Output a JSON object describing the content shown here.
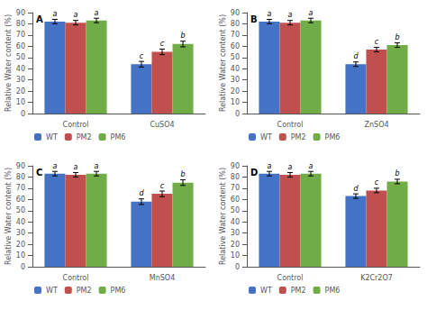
{
  "chart_data": [
    {
      "type": "bar",
      "title": "A",
      "categories": [
        "Control",
        "CuSO4"
      ],
      "ylabel": "Relative Water content (%)",
      "ylim": [
        0,
        90
      ],
      "yticks": [
        0,
        10,
        20,
        30,
        40,
        50,
        60,
        70,
        80,
        90
      ],
      "grid": false,
      "legend": "bottom",
      "series": [
        {
          "name": "WT",
          "color": "#4472C4",
          "values": [
            82,
            44
          ],
          "errors": [
            2.0,
            2.5
          ],
          "annotations": [
            "a",
            "c"
          ]
        },
        {
          "name": "PM2",
          "color": "#C0504D",
          "values": [
            81,
            55
          ],
          "errors": [
            2.0,
            2.5
          ],
          "annotations": [
            "a",
            "c"
          ]
        },
        {
          "name": "PM6",
          "color": "#70AD47",
          "values": [
            83,
            62
          ],
          "errors": [
            2.0,
            2.5
          ],
          "annotations": [
            "a",
            "b"
          ]
        }
      ]
    },
    {
      "type": "bar",
      "title": "B",
      "categories": [
        "Control",
        "ZnSO4"
      ],
      "ylabel": "Relative Water content (%)",
      "ylim": [
        0,
        90
      ],
      "yticks": [
        0,
        10,
        20,
        30,
        40,
        50,
        60,
        70,
        80,
        90
      ],
      "grid": false,
      "legend": "bottom",
      "series": [
        {
          "name": "WT",
          "color": "#4472C4",
          "values": [
            82,
            44
          ],
          "errors": [
            2.0,
            2.0
          ],
          "annotations": [
            "a",
            "d"
          ]
        },
        {
          "name": "PM2",
          "color": "#C0504D",
          "values": [
            81,
            57
          ],
          "errors": [
            2.0,
            2.0
          ],
          "annotations": [
            "a",
            "c"
          ]
        },
        {
          "name": "PM6",
          "color": "#70AD47",
          "values": [
            83,
            61
          ],
          "errors": [
            2.0,
            2.0
          ],
          "annotations": [
            "a",
            "b"
          ]
        }
      ]
    },
    {
      "type": "bar",
      "title": "C",
      "categories": [
        "Control",
        "MnSO4"
      ],
      "ylabel": "Relative Water content (%)",
      "ylim": [
        0,
        90
      ],
      "yticks": [
        0,
        10,
        20,
        30,
        40,
        50,
        60,
        70,
        80,
        90
      ],
      "grid": false,
      "legend": "bottom",
      "series": [
        {
          "name": "WT",
          "color": "#4472C4",
          "values": [
            83,
            58
          ],
          "errors": [
            2.0,
            2.5
          ],
          "annotations": [
            "a",
            "d"
          ]
        },
        {
          "name": "PM2",
          "color": "#C0504D",
          "values": [
            82,
            65
          ],
          "errors": [
            2.0,
            2.5
          ],
          "annotations": [
            "a",
            "c"
          ]
        },
        {
          "name": "PM6",
          "color": "#70AD47",
          "values": [
            83,
            75
          ],
          "errors": [
            2.0,
            2.5
          ],
          "annotations": [
            "a",
            "b"
          ]
        }
      ]
    },
    {
      "type": "bar",
      "title": "D",
      "categories": [
        "Control",
        "K2Cr2O7"
      ],
      "ylabel": "Relative Water content (%)",
      "ylim": [
        0,
        90
      ],
      "yticks": [
        0,
        10,
        20,
        30,
        40,
        50,
        60,
        70,
        80,
        90
      ],
      "grid": false,
      "legend": "bottom",
      "series": [
        {
          "name": "WT",
          "color": "#4472C4",
          "values": [
            83,
            63
          ],
          "errors": [
            2.0,
            2.0
          ],
          "annotations": [
            "a",
            "d"
          ]
        },
        {
          "name": "PM2",
          "color": "#C0504D",
          "values": [
            82,
            68
          ],
          "errors": [
            2.0,
            2.0
          ],
          "annotations": [
            "a",
            "c"
          ]
        },
        {
          "name": "PM6",
          "color": "#70AD47",
          "values": [
            83,
            76
          ],
          "errors": [
            2.0,
            2.0
          ],
          "annotations": [
            "a",
            "b"
          ]
        }
      ]
    }
  ]
}
